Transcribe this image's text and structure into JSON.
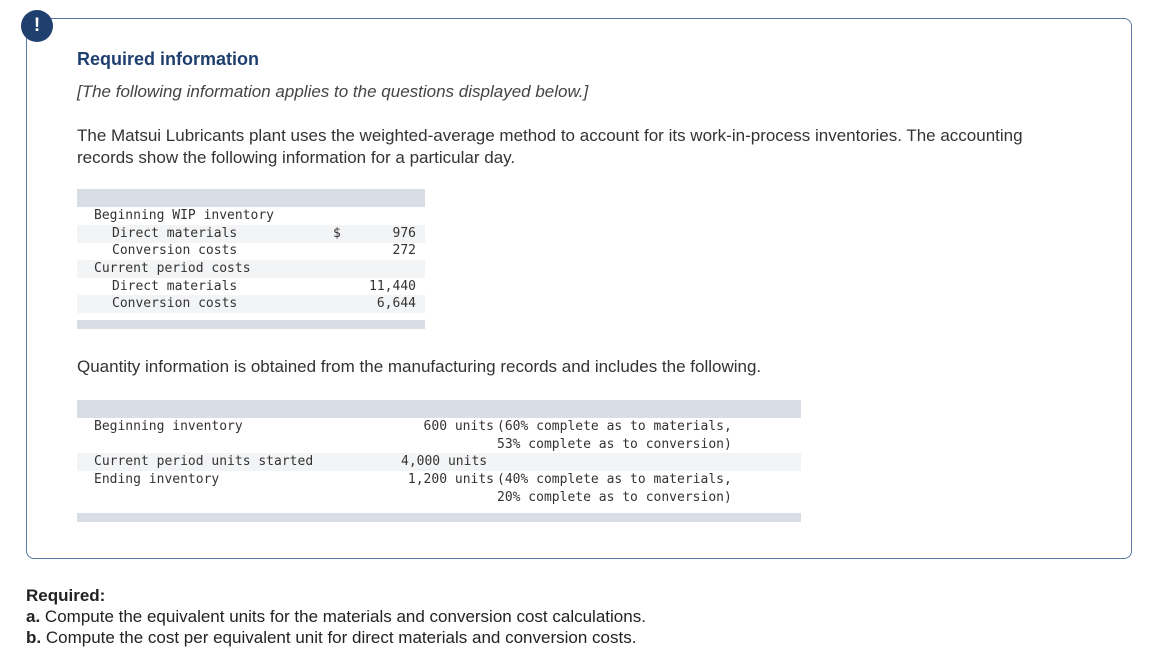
{
  "alert_icon": "!",
  "info": {
    "title": "Required information",
    "subtitle": "[The following information applies to the questions displayed below.]",
    "intro": "The Matsui Lubricants plant uses the weighted-average method to account for its work-in-process inventories. The accounting records show the following information for a particular day.",
    "quantity_intro": "Quantity information is obtained from the manufacturing records and includes the following."
  },
  "cost_table": {
    "rows": [
      {
        "label": "Beginning WIP inventory",
        "symbol": "",
        "value": ""
      },
      {
        "label": "Direct materials",
        "symbol": "$",
        "value": "976"
      },
      {
        "label": "Conversion costs",
        "symbol": "",
        "value": "272"
      },
      {
        "label": "Current period costs",
        "symbol": "",
        "value": ""
      },
      {
        "label": "Direct materials",
        "symbol": "",
        "value": "11,440"
      },
      {
        "label": "Conversion costs",
        "symbol": "",
        "value": "6,644"
      }
    ]
  },
  "quantity_table": {
    "rows": [
      {
        "label": "Beginning inventory",
        "amount": "600 units",
        "note1": "(60% complete as to materials,",
        "note2": "53% complete as to conversion)"
      },
      {
        "label": "Current period units started",
        "amount": "4,000 units",
        "note1": "",
        "note2": ""
      },
      {
        "label": "Ending inventory",
        "amount": "1,200 units",
        "note1": "(40% complete as to materials,",
        "note2": "20% complete as to conversion)"
      }
    ]
  },
  "required": {
    "title": "Required:",
    "a_label": "a.",
    "a_text": "Compute the equivalent units for the materials and conversion cost calculations.",
    "b_label": "b.",
    "b_text": "Compute the cost per equivalent unit for direct materials and conversion costs."
  }
}
